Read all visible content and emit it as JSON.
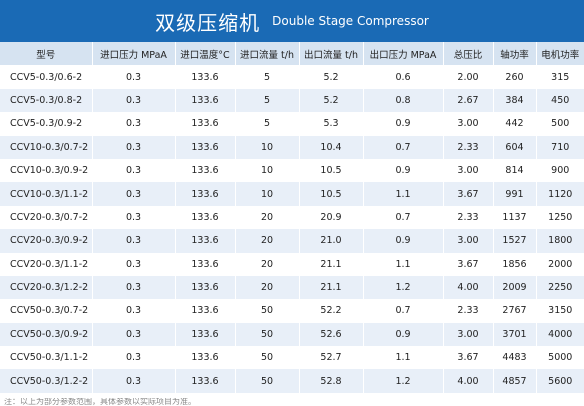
{
  "title": {
    "main": "双级压缩机",
    "sub": "Double Stage Compressor"
  },
  "colors": {
    "header_blue": "#1a6ab5",
    "header_row": "#d6e3f1",
    "stripe": "#e8eff8"
  },
  "columns": [
    "型号",
    "进口压力 MPaA",
    "进口温度°C",
    "进口流量 t/h",
    "出口流量 t/h",
    "出口压力 MPaA",
    "总压比",
    "轴功率",
    "电机功率"
  ],
  "rows": [
    [
      "CCV5-0.3/0.6-2",
      "0.3",
      "133.6",
      "5",
      "5.2",
      "0.6",
      "2.00",
      "260",
      "315"
    ],
    [
      "CCV5-0.3/0.8-2",
      "0.3",
      "133.6",
      "5",
      "5.2",
      "0.8",
      "2.67",
      "384",
      "450"
    ],
    [
      "CCV5-0.3/0.9-2",
      "0.3",
      "133.6",
      "5",
      "5.3",
      "0.9",
      "3.00",
      "442",
      "500"
    ],
    [
      "CCV10-0.3/0.7-2",
      "0.3",
      "133.6",
      "10",
      "10.4",
      "0.7",
      "2.33",
      "604",
      "710"
    ],
    [
      "CCV10-0.3/0.9-2",
      "0.3",
      "133.6",
      "10",
      "10.5",
      "0.9",
      "3.00",
      "814",
      "900"
    ],
    [
      "CCV10-0.3/1.1-2",
      "0.3",
      "133.6",
      "10",
      "10.5",
      "1.1",
      "3.67",
      "991",
      "1120"
    ],
    [
      "CCV20-0.3/0.7-2",
      "0.3",
      "133.6",
      "20",
      "20.9",
      "0.7",
      "2.33",
      "1137",
      "1250"
    ],
    [
      "CCV20-0.3/0.9-2",
      "0.3",
      "133.6",
      "20",
      "21.0",
      "0.9",
      "3.00",
      "1527",
      "1800"
    ],
    [
      "CCV20-0.3/1.1-2",
      "0.3",
      "133.6",
      "20",
      "21.1",
      "1.1",
      "3.67",
      "1856",
      "2000"
    ],
    [
      "CCV20-0.3/1.2-2",
      "0.3",
      "133.6",
      "20",
      "21.1",
      "1.2",
      "4.00",
      "2009",
      "2250"
    ],
    [
      "CCV50-0.3/0.7-2",
      "0.3",
      "133.6",
      "50",
      "52.2",
      "0.7",
      "2.33",
      "2767",
      "3150"
    ],
    [
      "CCV50-0.3/0.9-2",
      "0.3",
      "133.6",
      "50",
      "52.6",
      "0.9",
      "3.00",
      "3701",
      "4000"
    ],
    [
      "CCV50-0.3/1.1-2",
      "0.3",
      "133.6",
      "50",
      "52.7",
      "1.1",
      "3.67",
      "4483",
      "5000"
    ],
    [
      "CCV50-0.3/1.2-2",
      "0.3",
      "133.6",
      "50",
      "52.8",
      "1.2",
      "4.00",
      "4857",
      "5600"
    ]
  ],
  "footnote": "注：以上为部分参数范围，具体参数以实际项目为准。"
}
